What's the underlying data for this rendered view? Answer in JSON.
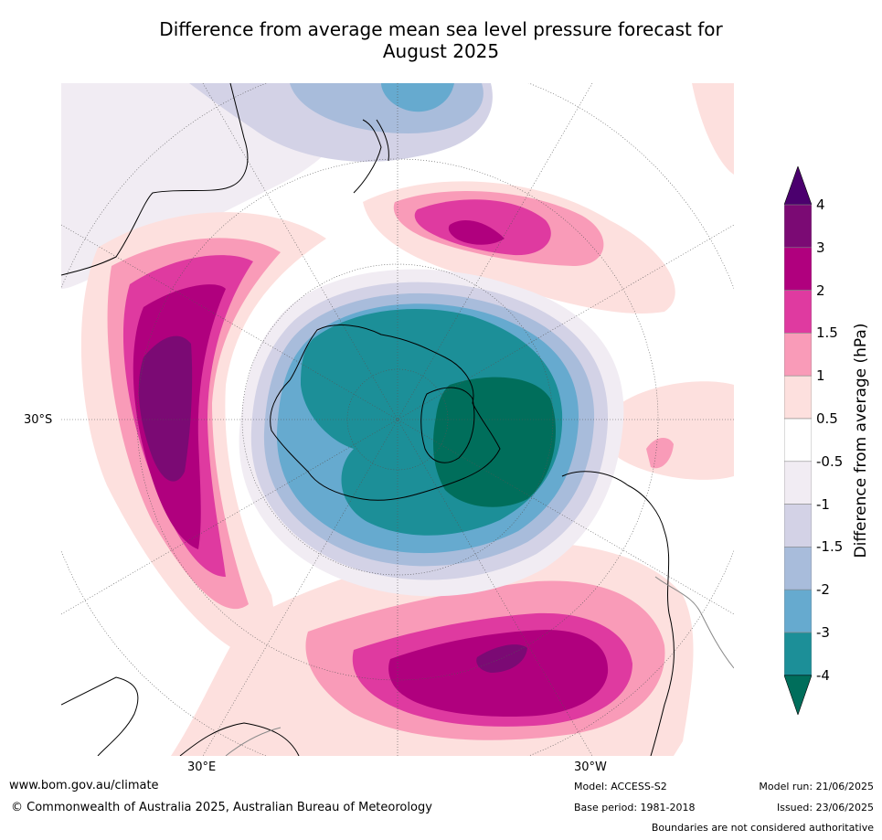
{
  "title_line1": "Difference from average mean sea level pressure forecast for",
  "title_line2": "August 2025",
  "map": {
    "labels": {
      "lat_left": "30°S",
      "lon_bottom_left": "30°E",
      "lon_bottom_right": "30°W"
    },
    "anomaly_regions": [
      {
        "name": "antarctic-low",
        "peak": "-4"
      },
      {
        "name": "indian-ocean-high",
        "peak": "4"
      },
      {
        "name": "south-atlantic-high",
        "peak": "4"
      },
      {
        "name": "south-pacific-high",
        "peak": "3"
      }
    ]
  },
  "colorbar": {
    "label": "Difference from average (hPa)",
    "ticks": [
      "4",
      "3",
      "2",
      "1.5",
      "1",
      "0.5",
      "-0.5",
      "-1",
      "-1.5",
      "-2",
      "-3",
      "-4"
    ],
    "colors": [
      "#4b006e",
      "#7b0a74",
      "#b0007e",
      "#df3aa0",
      "#f99bb8",
      "#fde0de",
      "#ffffff",
      "#f1ecf3",
      "#d3d2e6",
      "#a8bcdb",
      "#66aacf",
      "#1c8f98",
      "#006e5b"
    ]
  },
  "footer": {
    "website": "www.bom.gov.au/climate",
    "copyright": "© Commonwealth of Australia 2025, Australian Bureau of Meteorology",
    "model": "Model: ACCESS-S2",
    "base_period": "Base period: 1981-2018",
    "model_run": "Model run: 21/06/2025",
    "issued": "Issued: 23/06/2025",
    "disclaimer": "Boundaries are not considered authoritative"
  }
}
